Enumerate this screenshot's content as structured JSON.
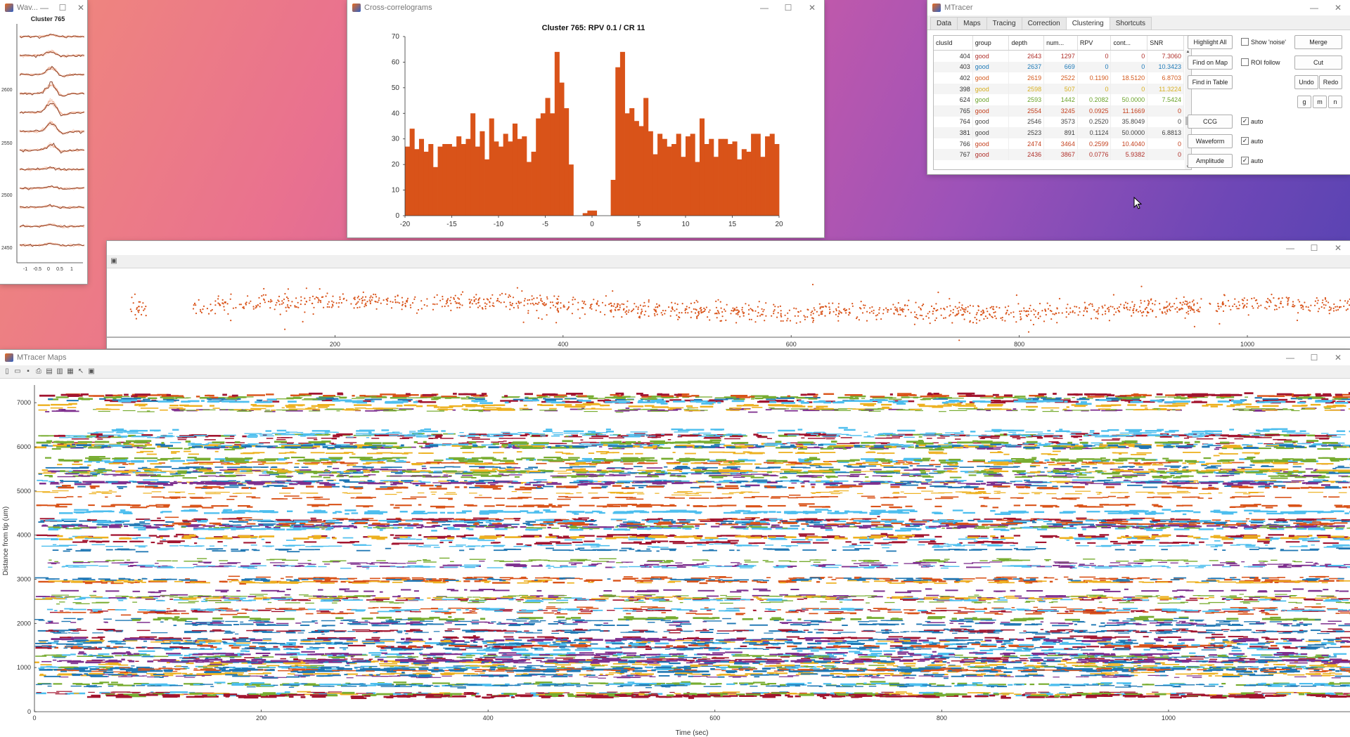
{
  "waveform": {
    "title": "Wav...",
    "cluster_label": "Cluster 765",
    "y_ticks": [
      "2600",
      "2550",
      "2500",
      "2450"
    ],
    "x_ticks": [
      "-1",
      "-0.5",
      "0",
      "0.5",
      "1"
    ]
  },
  "ccg": {
    "title": "Cross-correlograms",
    "chart_data": {
      "type": "bar",
      "title": "Cluster 765: RPV 0.1 / CR 11",
      "xlim": [
        -20,
        20
      ],
      "ylim": [
        0,
        70
      ],
      "x_ticks": [
        -20,
        -15,
        -10,
        -5,
        0,
        5,
        10,
        15,
        20
      ],
      "y_ticks": [
        0,
        10,
        20,
        30,
        40,
        50,
        60,
        70
      ],
      "bin_width": 0.5,
      "x": [
        -19.75,
        -19.25,
        -18.75,
        -18.25,
        -17.75,
        -17.25,
        -16.75,
        -16.25,
        -15.75,
        -15.25,
        -14.75,
        -14.25,
        -13.75,
        -13.25,
        -12.75,
        -12.25,
        -11.75,
        -11.25,
        -10.75,
        -10.25,
        -9.75,
        -9.25,
        -8.75,
        -8.25,
        -7.75,
        -7.25,
        -6.75,
        -6.25,
        -5.75,
        -5.25,
        -4.75,
        -4.25,
        -3.75,
        -3.25,
        -2.75,
        -2.25,
        -1.75,
        -1.25,
        -0.75,
        -0.25,
        0.25,
        0.75,
        1.25,
        1.75,
        2.25,
        2.75,
        3.25,
        3.75,
        4.25,
        4.75,
        5.25,
        5.75,
        6.25,
        6.75,
        7.25,
        7.75,
        8.25,
        8.75,
        9.25,
        9.75,
        10.25,
        10.75,
        11.25,
        11.75,
        12.25,
        12.75,
        13.25,
        13.75,
        14.25,
        14.75,
        15.25,
        15.75,
        16.25,
        16.75,
        17.25,
        17.75,
        18.25,
        18.75,
        19.25,
        19.75
      ],
      "values": [
        27,
        34,
        26,
        30,
        25,
        28,
        19,
        27,
        28,
        28,
        27,
        31,
        28,
        30,
        40,
        27,
        33,
        22,
        38,
        29,
        27,
        32,
        29,
        36,
        30,
        31,
        21,
        25,
        38,
        40,
        46,
        40,
        64,
        52,
        42,
        20,
        0,
        0,
        1,
        2,
        2,
        0,
        0,
        0,
        14,
        58,
        64,
        40,
        42,
        37,
        35,
        46,
        33,
        24,
        32,
        30,
        27,
        28,
        32,
        23,
        31,
        32,
        21,
        38,
        28,
        30,
        23,
        30,
        30,
        28,
        29,
        22,
        26,
        25,
        32,
        32,
        23,
        31,
        32,
        28
      ]
    }
  },
  "mtracer": {
    "title": "MTracer",
    "tabs": [
      "Data",
      "Maps",
      "Tracing",
      "Correction",
      "Clustering",
      "Shortcuts"
    ],
    "active_tab": "Clustering",
    "columns": [
      "clusId",
      "group",
      "depth",
      "num...",
      "RPV",
      "cont...",
      "SNR"
    ],
    "rows": [
      {
        "clusId": "404",
        "group": "good",
        "depth": "2643",
        "num": "1297",
        "rpv": "0",
        "cont": "0",
        "snr": "7.3060",
        "color": "#b0302a"
      },
      {
        "clusId": "403",
        "group": "good",
        "depth": "2637",
        "num": "669",
        "rpv": "0",
        "cont": "0",
        "snr": "10.3423",
        "color": "#1f7ab8"
      },
      {
        "clusId": "402",
        "group": "good",
        "depth": "2619",
        "num": "2522",
        "rpv": "0.1190",
        "cont": "18.5120",
        "snr": "6.8703",
        "color": "#d45a1e"
      },
      {
        "clusId": "398",
        "group": "good",
        "depth": "2598",
        "num": "507",
        "rpv": "0",
        "cont": "0",
        "snr": "11.3224",
        "color": "#d8b020"
      },
      {
        "clusId": "624",
        "group": "good",
        "depth": "2593",
        "num": "1442",
        "rpv": "0.2082",
        "cont": "50.0000",
        "snr": "7.5424",
        "color": "#6aa22a"
      },
      {
        "clusId": "765",
        "group": "good",
        "depth": "2554",
        "num": "3245",
        "rpv": "0.0925",
        "cont": "11.1669",
        "snr": "0",
        "color": "#c4401e"
      },
      {
        "clusId": "764",
        "group": "good",
        "depth": "2546",
        "num": "3573",
        "rpv": "0.2520",
        "cont": "35.8049",
        "snr": "0",
        "color": "#444444"
      },
      {
        "clusId": "381",
        "group": "good",
        "depth": "2523",
        "num": "891",
        "rpv": "0.1124",
        "cont": "50.0000",
        "snr": "6.8813",
        "color": "#444444"
      },
      {
        "clusId": "766",
        "group": "good",
        "depth": "2474",
        "num": "3464",
        "rpv": "0.2599",
        "cont": "10.4040",
        "snr": "0",
        "color": "#c4401e"
      },
      {
        "clusId": "767",
        "group": "good",
        "depth": "2436",
        "num": "3867",
        "rpv": "0.0776",
        "cont": "5.9382",
        "snr": "0",
        "color": "#b0302a"
      }
    ],
    "buttons": {
      "highlight_all": "Highlight All",
      "find_on_map": "Find on Map",
      "find_in_table": "Find in Table",
      "merge": "Merge",
      "cut": "Cut",
      "undo": "Undo",
      "redo": "Redo",
      "g": "g",
      "m": "m",
      "n": "n",
      "ccg": "CCG",
      "waveform": "Waveform",
      "amplitude": "Amplitude"
    },
    "checks": {
      "show_noise": "Show 'noise'",
      "roi_follow": "ROI follow",
      "auto": "auto"
    }
  },
  "amplitude": {
    "x_ticks": [
      200,
      400,
      600,
      800,
      1000
    ],
    "xlim": [
      0,
      1090
    ]
  },
  "maps": {
    "title": "MTracer Maps",
    "chart_data": {
      "type": "scatter",
      "xlabel": "Time (sec)",
      "ylabel": "Distance from tip (um)",
      "xlim": [
        0,
        1160
      ],
      "ylim": [
        0,
        7400
      ],
      "x_ticks": [
        0,
        200,
        400,
        600,
        800,
        1000
      ],
      "y_ticks": [
        0,
        1000,
        2000,
        3000,
        4000,
        5000,
        6000,
        7000
      ]
    }
  }
}
